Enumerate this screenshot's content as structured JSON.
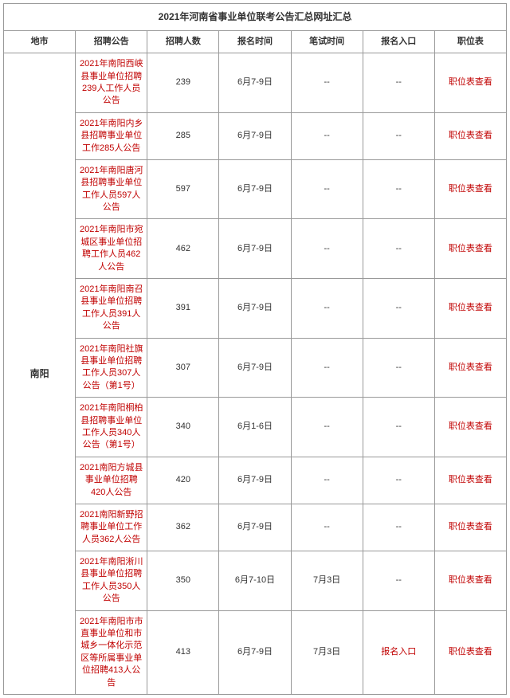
{
  "title": "2021年河南省事业单位联考公告汇总网址汇总",
  "headers": {
    "city": "地市",
    "notice": "招聘公告",
    "count": "招聘人数",
    "signup_time": "报名时间",
    "exam_time": "笔试时间",
    "entry": "报名入口",
    "position": "职位表"
  },
  "city": "南阳",
  "rows": [
    {
      "notice": "2021年南阳西峡县事业单位招聘239人工作人员公告",
      "count": "239",
      "signup_time": "6月7-9日",
      "exam_time": "--",
      "entry": "--",
      "position": "职位表查看"
    },
    {
      "notice": "2021年南阳内乡县招聘事业单位工作285人公告",
      "count": "285",
      "signup_time": "6月7-9日",
      "exam_time": "--",
      "entry": "--",
      "position": "职位表查看"
    },
    {
      "notice": "2021年南阳唐河县招聘事业单位工作人员597人公告",
      "count": "597",
      "signup_time": "6月7-9日",
      "exam_time": "--",
      "entry": "--",
      "position": "职位表查看"
    },
    {
      "notice": "2021年南阳市宛城区事业单位招聘工作人员462人公告",
      "count": "462",
      "signup_time": "6月7-9日",
      "exam_time": "--",
      "entry": "--",
      "position": "职位表查看"
    },
    {
      "notice": "2021年南阳南召县事业单位招聘工作人员391人公告",
      "count": "391",
      "signup_time": "6月7-9日",
      "exam_time": "--",
      "entry": "--",
      "position": "职位表查看"
    },
    {
      "notice": "2021年南阳社旗县事业单位招聘工作人员307人公告（第1号）",
      "count": "307",
      "signup_time": "6月7-9日",
      "exam_time": "--",
      "entry": "--",
      "position": "职位表查看"
    },
    {
      "notice": "2021年南阳桐柏县招聘事业单位工作人员340人公告（第1号）",
      "count": "340",
      "signup_time": "6月1-6日",
      "exam_time": "--",
      "entry": "--",
      "position": "职位表查看"
    },
    {
      "notice": "2021南阳方城县事业单位招聘420人公告",
      "count": "420",
      "signup_time": "6月7-9日",
      "exam_time": "--",
      "entry": "--",
      "position": "职位表查看"
    },
    {
      "notice": "2021南阳新野招聘事业单位工作人员362人公告",
      "count": "362",
      "signup_time": "6月7-9日",
      "exam_time": "--",
      "entry": "--",
      "position": "职位表查看"
    },
    {
      "notice": "2021年南阳淅川县事业单位招聘工作人员350人公告",
      "count": "350",
      "signup_time": "6月7-10日",
      "exam_time": "7月3日",
      "entry": "--",
      "position": "职位表查看"
    },
    {
      "notice": "2021年南阳市市直事业单位和市城乡一体化示范区等所属事业单位招聘413人公告",
      "count": "413",
      "signup_time": "6月7-9日",
      "exam_time": "7月3日",
      "entry": "报名入口",
      "position": "职位表查看"
    }
  ],
  "colors": {
    "link": "#c00000",
    "text": "#333333",
    "border": "#999999"
  }
}
